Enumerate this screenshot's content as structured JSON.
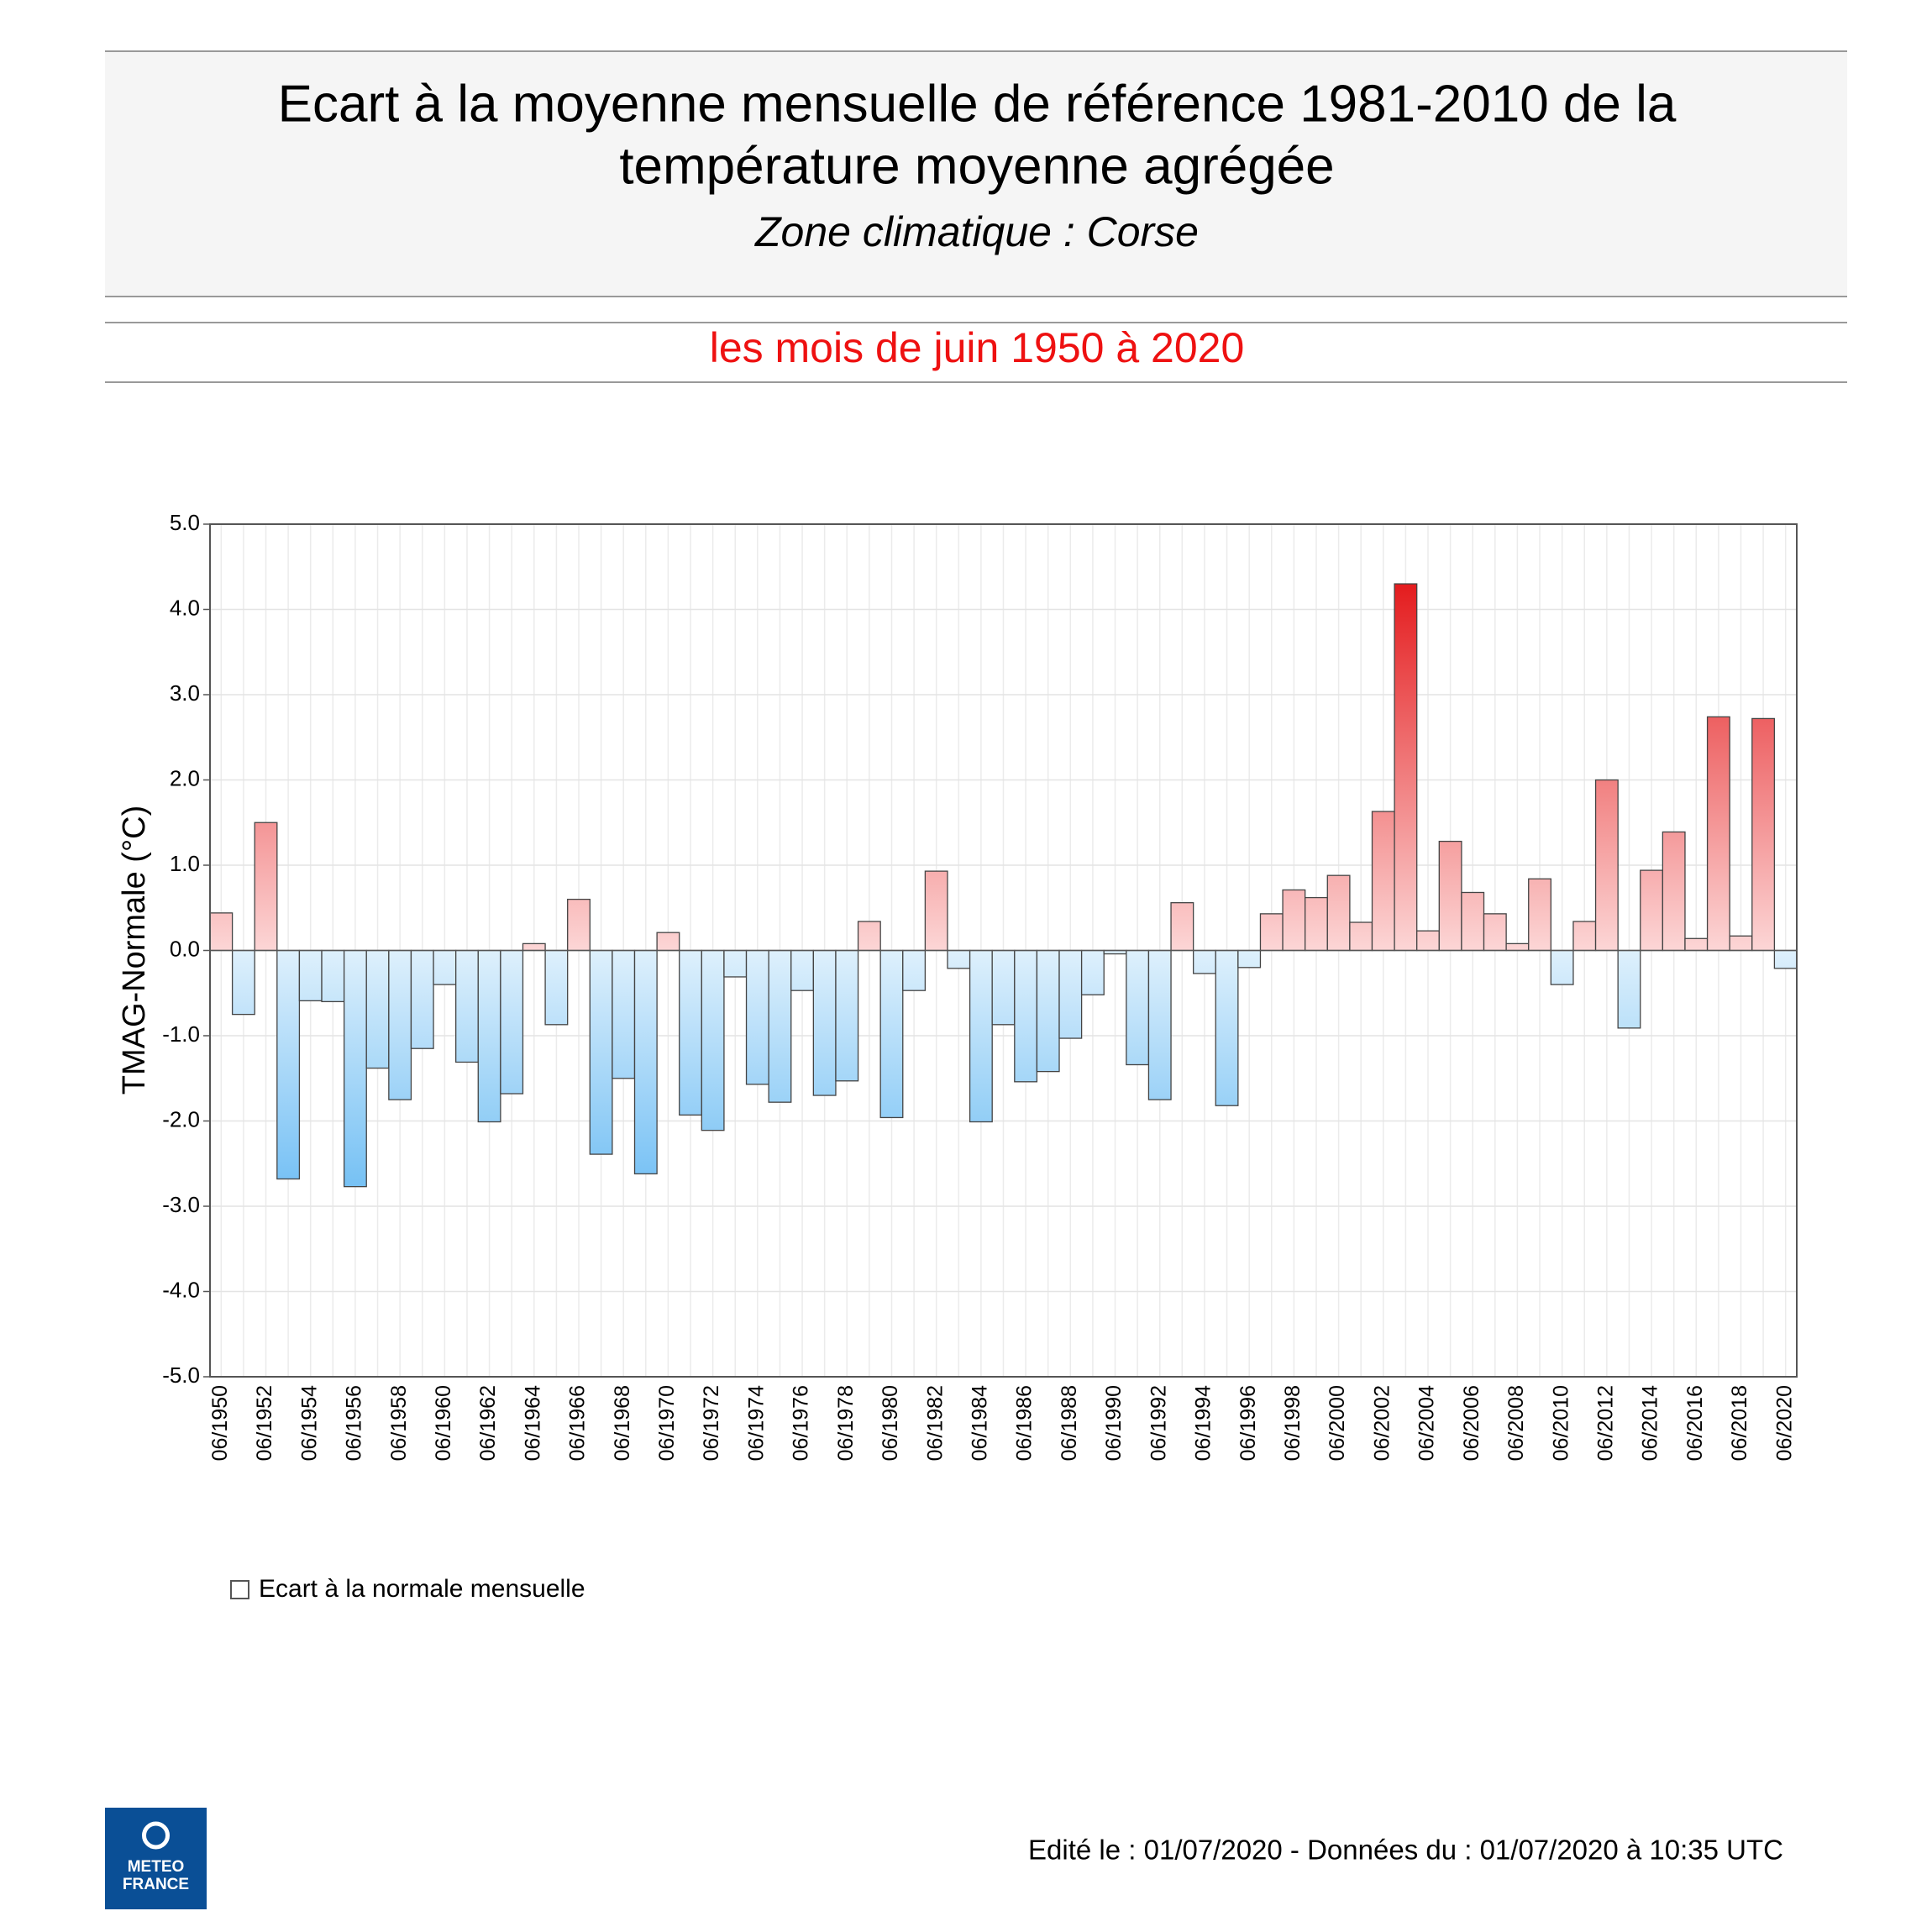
{
  "chart_data": {
    "type": "bar",
    "title_lines": [
      "Ecart à la moyenne mensuelle de référence 1981-2010 de la",
      "température moyenne  agrégée"
    ],
    "subtitle": "Zone climatique : Corse",
    "period": "les mois de juin 1950 à 2020",
    "y_label": "TMAG-Normale (°C)",
    "legend_label": "Ecart à la normale mensuelle",
    "footer": "Edité le : 01/07/2020 - Données du : 01/07/2020 à 10:35 UTC",
    "logo": [
      "METEO",
      "FRANCE"
    ],
    "positive_color": "#e41a1c",
    "negative_color": "#3aa6f0",
    "grid": true,
    "categories": [
      "06/1950",
      null,
      "06/1952",
      null,
      "06/1954",
      null,
      "06/1956",
      null,
      "06/1958",
      null,
      "06/1960",
      null,
      "06/1962",
      null,
      "06/1964",
      null,
      "06/1966",
      null,
      "06/1968",
      null,
      "06/1970",
      null,
      "06/1972",
      null,
      "06/1974",
      null,
      "06/1976",
      null,
      "06/1978",
      null,
      "06/1980",
      null,
      "06/1982",
      null,
      "06/1984",
      null,
      "06/1986",
      null,
      "06/1988",
      null,
      "06/1990",
      null,
      "06/1992",
      null,
      "06/1994",
      null,
      "06/1996",
      null,
      "06/1998",
      null,
      "06/2000",
      null,
      "06/2002",
      null,
      "06/2004",
      null,
      "06/2006",
      null,
      "06/2008",
      null,
      "06/2010",
      null,
      "06/2012",
      null,
      "06/2014",
      null,
      "06/2016",
      null,
      "06/2018",
      null,
      "06/2020"
    ],
    "values": [
      0.44,
      -0.75,
      1.5,
      -2.68,
      -0.59,
      -0.6,
      -2.77,
      -1.38,
      -1.75,
      -1.15,
      -0.4,
      -1.31,
      -2.01,
      -1.68,
      0.08,
      -0.87,
      0.6,
      -2.39,
      -1.5,
      -2.62,
      0.21,
      -1.93,
      -2.11,
      -0.31,
      -1.57,
      -1.78,
      -0.47,
      -1.7,
      -1.53,
      0.34,
      -1.96,
      -0.47,
      0.93,
      -0.21,
      -2.01,
      -0.87,
      -1.54,
      -1.42,
      -1.03,
      -0.52,
      -0.04,
      -1.34,
      -1.75,
      0.56,
      -0.27,
      -1.82,
      -0.2,
      0.43,
      0.71,
      0.62,
      0.88,
      0.33,
      1.63,
      4.3,
      0.23,
      1.28,
      0.68,
      0.43,
      0.08,
      0.84,
      -0.4,
      0.34,
      2.0,
      -0.91,
      0.94,
      1.39,
      0.14,
      2.74,
      0.17,
      2.72,
      -0.21
    ],
    "ylim": [
      -5,
      5
    ],
    "yticks": [
      {
        "value": -5,
        "label": "-5.0"
      },
      {
        "value": -4,
        "label": "-4.0"
      },
      {
        "value": -3,
        "label": "-3.0"
      },
      {
        "value": -2,
        "label": "-2.0"
      },
      {
        "value": -1,
        "label": "-1.0"
      },
      {
        "value": 0,
        "label": "0.0"
      },
      {
        "value": 1,
        "label": "1.0"
      },
      {
        "value": 2,
        "label": "2.0"
      },
      {
        "value": 3,
        "label": "3.0"
      },
      {
        "value": 4,
        "label": "4.0"
      },
      {
        "value": 5,
        "label": "5.0"
      }
    ]
  }
}
